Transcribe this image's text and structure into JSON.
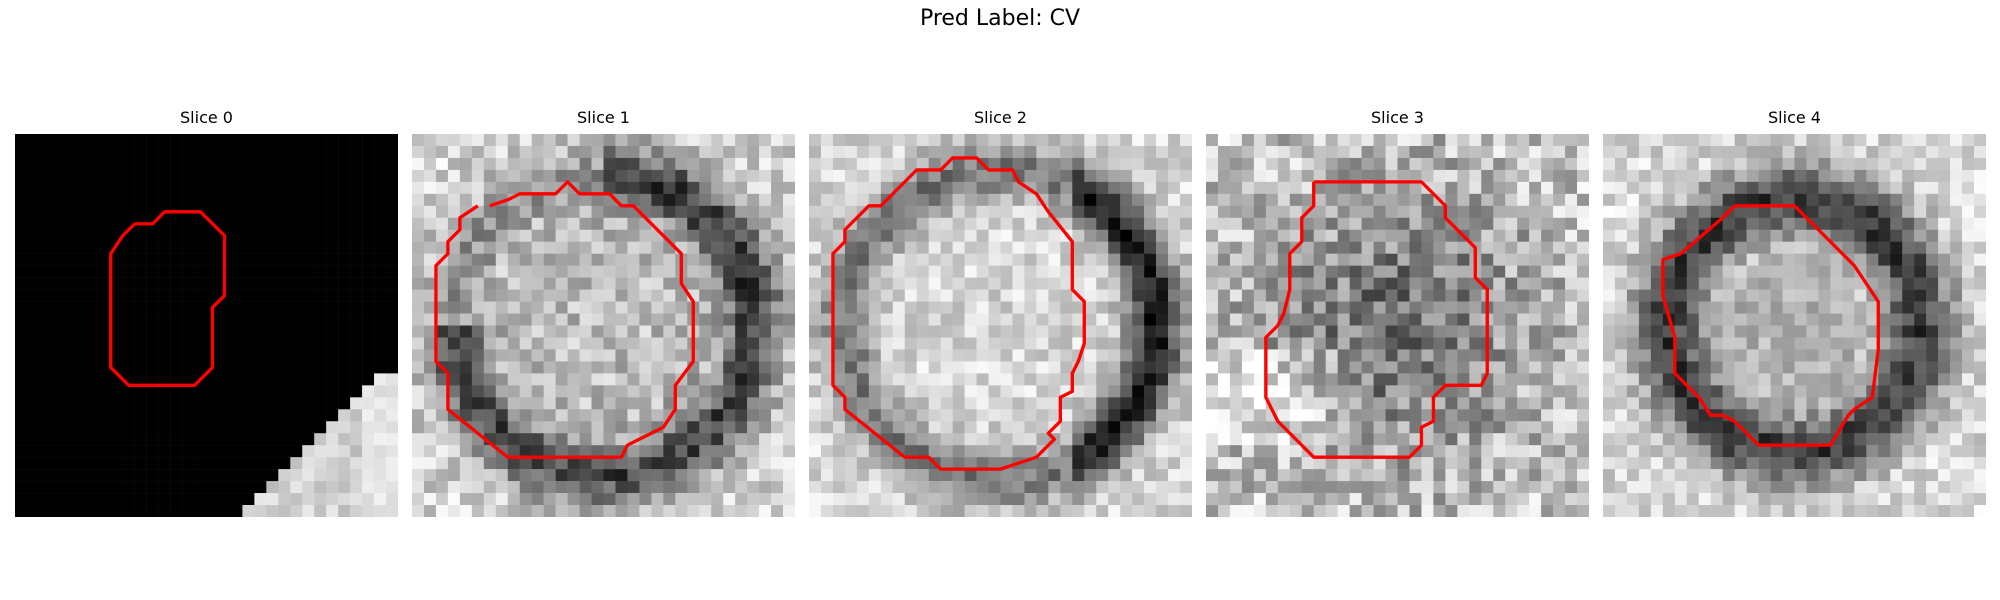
{
  "figure": {
    "title": "Pred Label: CV",
    "contour_color": "#ff0000",
    "panels": [
      {
        "title": "Slice 0",
        "seed": 11,
        "style": "black-corner"
      },
      {
        "title": "Slice 1",
        "seed": 23,
        "style": "ring-bottom"
      },
      {
        "title": "Slice 2",
        "seed": 37,
        "style": "ring-bright"
      },
      {
        "title": "Slice 3",
        "seed": 41,
        "style": "diffuse-dark"
      },
      {
        "title": "Slice 4",
        "seed": 53,
        "style": "dark-ring"
      }
    ]
  }
}
